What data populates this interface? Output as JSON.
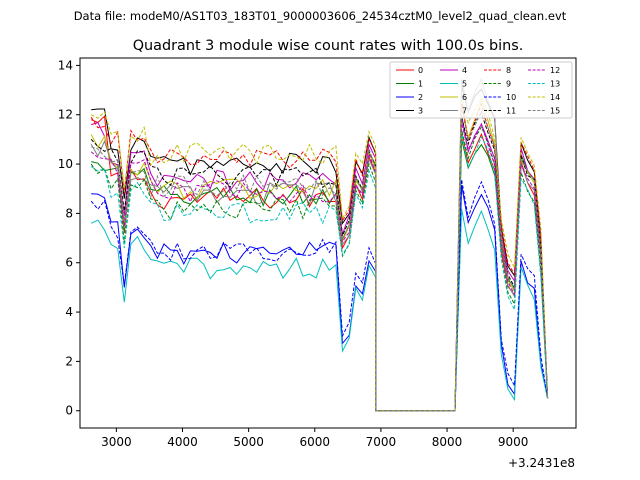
{
  "chart_data": {
    "type": "line",
    "suptitle": "Data file: modeM0/AS1T03_183T01_9000003606_24534cztM0_level2_quad_clean.evt",
    "title": "Quadrant 3 module wise count rates with 100.0s bins.",
    "xlabel": "",
    "ylabel": "",
    "x_offset_label": "+3.2431e8",
    "xlim": [
      2450,
      9950
    ],
    "ylim": [
      -0.7,
      14.3
    ],
    "x_ticks": [
      3000,
      4000,
      5000,
      6000,
      7000,
      8000,
      9000
    ],
    "x_tick_labels": [
      "3000",
      "4000",
      "5000",
      "6000",
      "7000",
      "8000",
      "9000"
    ],
    "y_ticks": [
      0,
      2,
      4,
      6,
      8,
      10,
      12,
      14
    ],
    "y_tick_labels": [
      "0",
      "2",
      "4",
      "6",
      "8",
      "10",
      "12",
      "14"
    ],
    "legend_position": "top-right",
    "series": [
      {
        "name": "0",
        "color": "#ff0000",
        "dash": false,
        "level": 8.6,
        "gap_level": 9.0,
        "first": 11.8,
        "peak": 11.4
      },
      {
        "name": "1",
        "color": "#008000",
        "dash": false,
        "level": 8.7,
        "gap_level": 9.3,
        "first": 10.1,
        "peak": 11.0
      },
      {
        "name": "2",
        "color": "#0000ff",
        "dash": false,
        "level": 6.4,
        "gap_level": 5.0,
        "first": 8.8,
        "peak": 9.0
      },
      {
        "name": "3",
        "color": "#000000",
        "dash": false,
        "level": 10.0,
        "gap_level": 9.8,
        "first": 12.2,
        "peak": 13.3
      },
      {
        "name": "4",
        "color": "#bf00bf",
        "dash": false,
        "level": 9.3,
        "gap_level": 9.6,
        "first": 11.6,
        "peak": 11.9
      },
      {
        "name": "5",
        "color": "#00bfbf",
        "dash": false,
        "level": 5.8,
        "gap_level": 4.8,
        "first": 7.6,
        "peak": 8.0
      },
      {
        "name": "6",
        "color": "#bfbf00",
        "dash": false,
        "level": 9.0,
        "gap_level": 9.2,
        "first": 11.2,
        "peak": 12.5
      },
      {
        "name": "7",
        "color": "#808080",
        "dash": false,
        "level": 8.8,
        "gap_level": 9.0,
        "first": 10.8,
        "peak": 13.4
      },
      {
        "name": "8",
        "color": "#ff0000",
        "dash": true,
        "level": 10.2,
        "gap_level": 9.9,
        "first": 11.9,
        "peak": 12.4
      },
      {
        "name": "9",
        "color": "#008000",
        "dash": true,
        "level": 8.2,
        "gap_level": 8.7,
        "first": 10.0,
        "peak": 11.5
      },
      {
        "name": "10",
        "color": "#0000ff",
        "dash": true,
        "level": 6.5,
        "gap_level": 5.4,
        "first": 8.5,
        "peak": 9.3
      },
      {
        "name": "11",
        "color": "#000000",
        "dash": true,
        "level": 9.5,
        "gap_level": 9.4,
        "first": 11.0,
        "peak": 12.1
      },
      {
        "name": "12",
        "color": "#bf00bf",
        "dash": true,
        "level": 8.9,
        "gap_level": 9.1,
        "first": 10.5,
        "peak": 11.7
      },
      {
        "name": "13",
        "color": "#00bfbf",
        "dash": true,
        "level": 8.0,
        "gap_level": 8.5,
        "first": 9.9,
        "peak": 11.2
      },
      {
        "name": "14",
        "color": "#bfbf00",
        "dash": true,
        "level": 10.4,
        "gap_level": 10.2,
        "first": 12.0,
        "peak": 12.8
      },
      {
        "name": "15",
        "color": "#808080",
        "dash": true,
        "level": 9.1,
        "gap_level": 9.3,
        "first": 10.7,
        "peak": 12.3
      }
    ],
    "segments": {
      "bin_width": 100,
      "first_start": 2620,
      "first_end": 6320,
      "mid_start": 6320,
      "mid_end": 6820,
      "drop_time": 6920,
      "zero_end": 8120,
      "last_start": 8220,
      "last_end": 9620,
      "end_value": 0.5
    }
  }
}
